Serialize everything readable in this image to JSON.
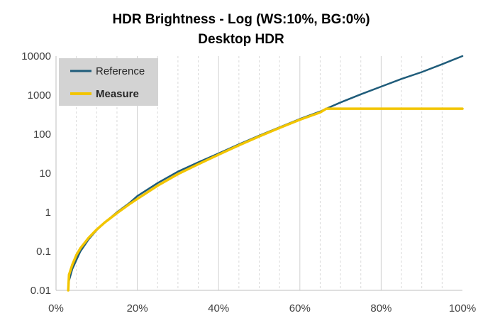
{
  "chart_data": {
    "type": "line",
    "title": "HDR Brightness - Log (WS:10%, BG:0%)",
    "subtitle": "Desktop HDR",
    "xlabel": "",
    "ylabel": "",
    "x_range": [
      0,
      100
    ],
    "y_scale": "log",
    "y_range": [
      0.01,
      10000
    ],
    "x_ticks": [
      "0%",
      "20%",
      "40%",
      "60%",
      "80%",
      "100%"
    ],
    "y_ticks": [
      "0.01",
      "0.1",
      "1",
      "10",
      "100",
      "1000",
      "10000"
    ],
    "grid": {
      "vertical": true,
      "horizontal": false,
      "vertical_step_percent": 5
    },
    "legend_position": "top-left",
    "series": [
      {
        "name": "Reference",
        "color": "#1F5C7A",
        "x": [
          3,
          4,
          5,
          6,
          8,
          10,
          12,
          15,
          18,
          20,
          25,
          30,
          35,
          40,
          45,
          50,
          55,
          60,
          65,
          66.5,
          70,
          75,
          80,
          85,
          90,
          95,
          100
        ],
        "y": [
          0.015,
          0.035,
          0.06,
          0.1,
          0.2,
          0.35,
          0.55,
          1.0,
          1.7,
          2.6,
          5.6,
          11,
          19,
          32,
          55,
          92,
          150,
          245,
          380,
          450,
          650,
          1050,
          1650,
          2600,
          3900,
          6200,
          10000
        ]
      },
      {
        "name": "Measure",
        "color": "#F2C500",
        "x": [
          3,
          3.2,
          4,
          5,
          6,
          8,
          10,
          12,
          15,
          18,
          20,
          25,
          30,
          35,
          40,
          45,
          50,
          55,
          60,
          65,
          66.5,
          70,
          80,
          90,
          100
        ],
        "y": [
          0.01,
          0.025,
          0.045,
          0.08,
          0.12,
          0.22,
          0.36,
          0.55,
          0.95,
          1.6,
          2.2,
          4.8,
          9.5,
          17,
          30,
          52,
          88,
          145,
          235,
          360,
          450,
          450,
          450,
          450,
          450
        ]
      }
    ]
  }
}
